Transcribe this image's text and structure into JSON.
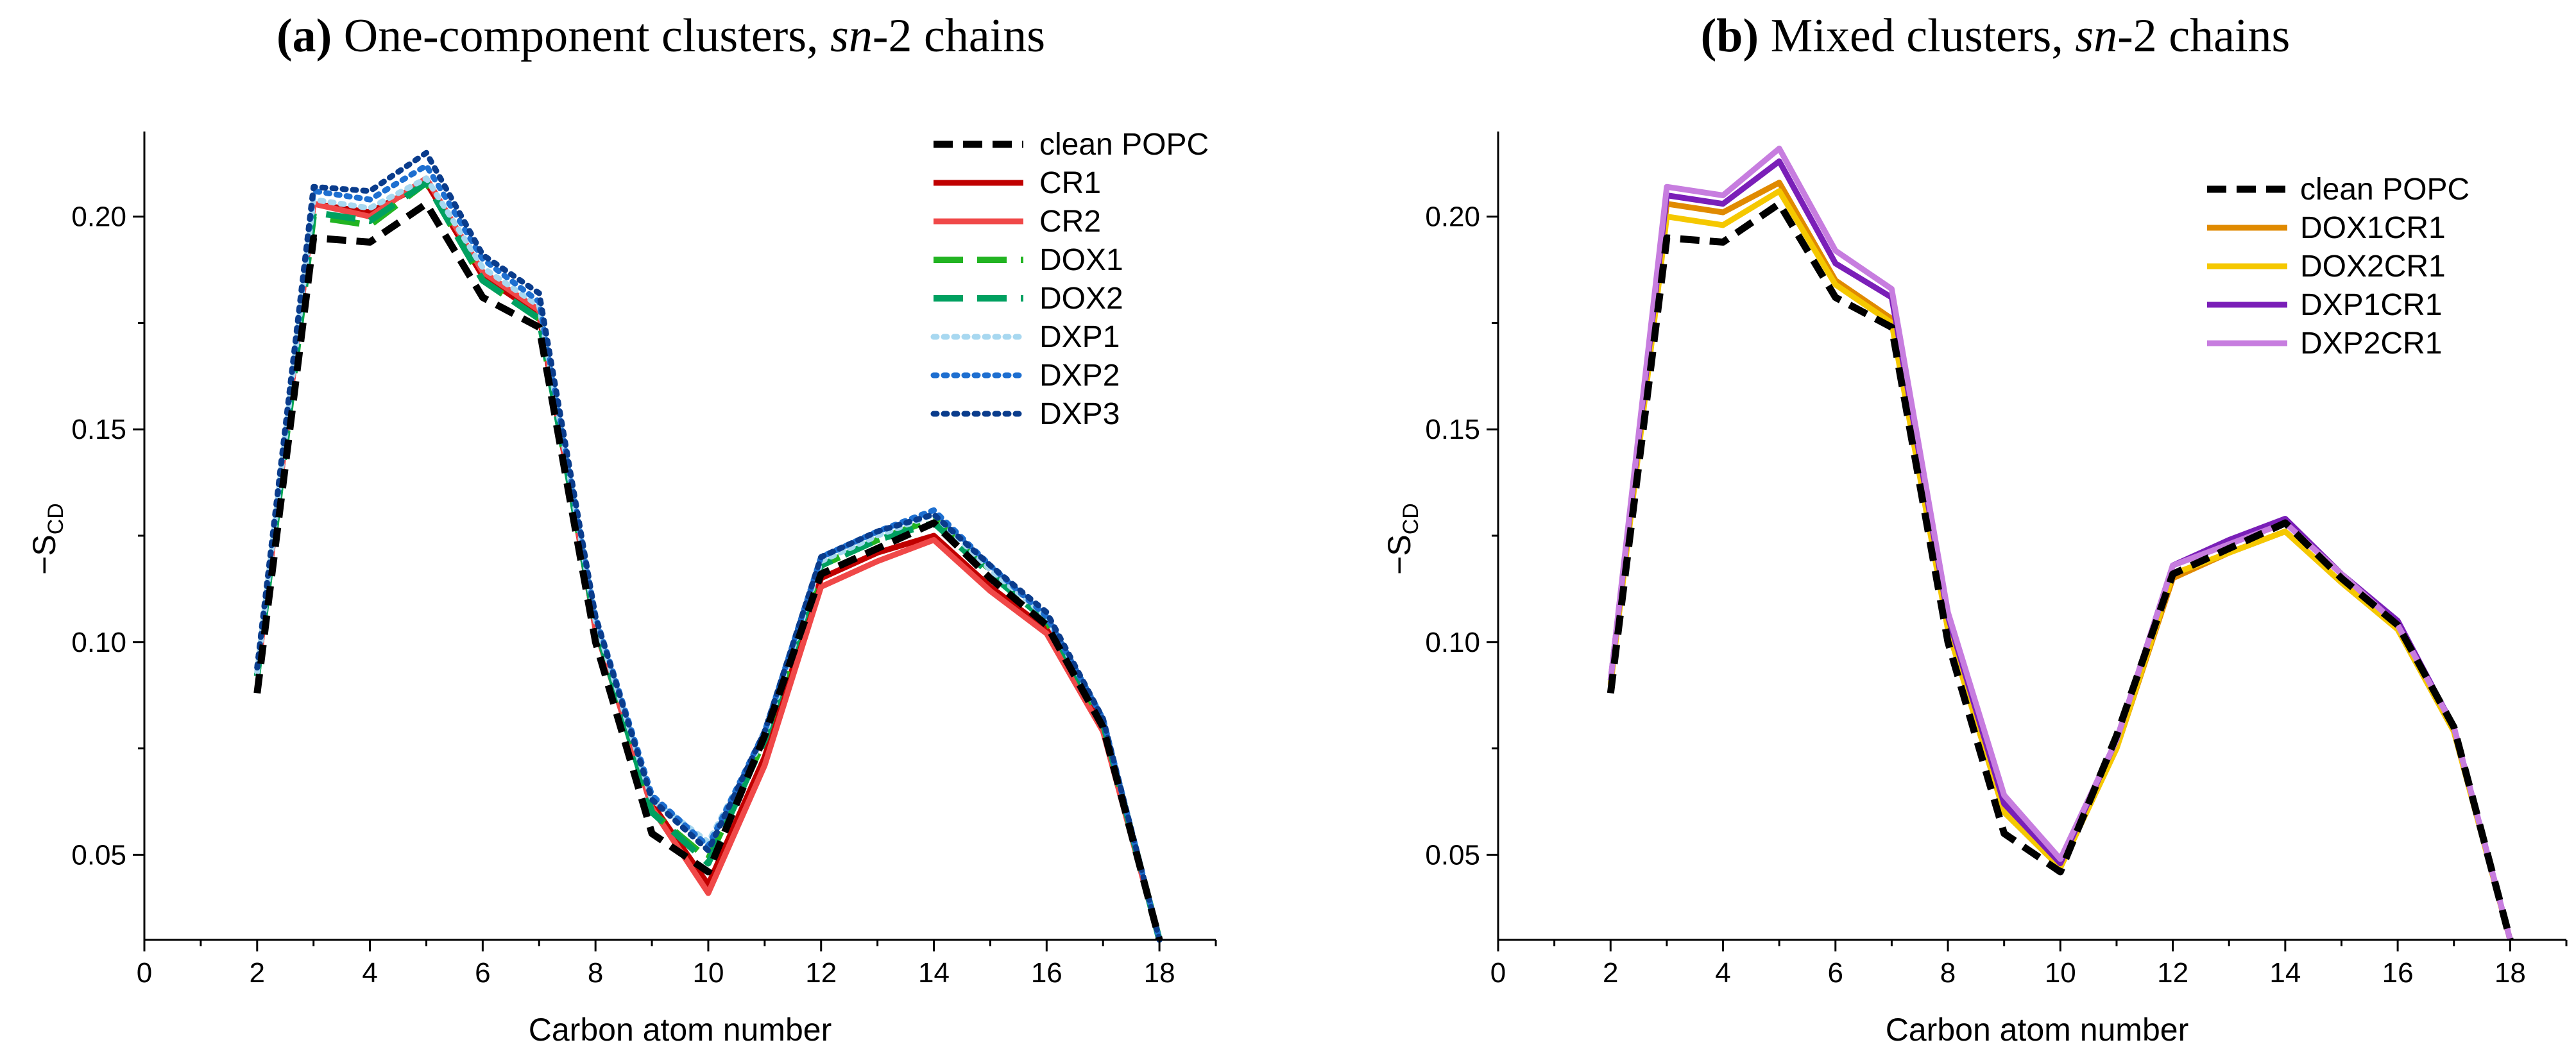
{
  "chart_data": [
    {
      "type": "line",
      "title_label": "(a)",
      "title_main": "One-component clusters, ",
      "title_italic": "sn",
      "title_tail": "-2 chains",
      "xlabel": "Carbon atom number",
      "ylabel_prefix": "−S",
      "ylabel_sub": "CD",
      "xlim": [
        0,
        19
      ],
      "ylim": [
        0.03,
        0.22
      ],
      "xticks": [
        "0",
        "2",
        "4",
        "6",
        "8",
        "10",
        "12",
        "14",
        "16",
        "18"
      ],
      "yticks": [
        "0.05",
        "0.10",
        "0.15",
        "0.20"
      ],
      "legend_position": "top-right",
      "x": [
        2,
        3,
        4,
        5,
        6,
        7,
        8,
        9,
        10,
        11,
        12,
        13,
        14,
        15,
        16,
        17,
        18
      ],
      "series": [
        {
          "name": "clean POPC",
          "color": "#000000",
          "style": "dashed",
          "values": [
            0.088,
            0.195,
            0.194,
            0.203,
            0.181,
            0.174,
            0.1,
            0.055,
            0.046,
            0.078,
            0.116,
            0.122,
            0.128,
            0.115,
            0.104,
            0.08,
            0.03
          ]
        },
        {
          "name": "CR1",
          "color": "#c00000",
          "style": "solid",
          "values": [
            0.092,
            0.203,
            0.201,
            0.208,
            0.186,
            0.177,
            0.103,
            0.062,
            0.043,
            0.073,
            0.115,
            0.121,
            0.125,
            0.113,
            0.103,
            0.08,
            0.03
          ]
        },
        {
          "name": "CR2",
          "color": "#f04848",
          "style": "solid",
          "values": [
            0.092,
            0.203,
            0.2,
            0.209,
            0.187,
            0.178,
            0.103,
            0.061,
            0.041,
            0.071,
            0.113,
            0.119,
            0.124,
            0.112,
            0.102,
            0.079,
            0.03
          ]
        },
        {
          "name": "DOX1",
          "color": "#22b422",
          "style": "longdash",
          "values": [
            0.092,
            0.2,
            0.198,
            0.208,
            0.185,
            0.176,
            0.104,
            0.06,
            0.049,
            0.077,
            0.118,
            0.124,
            0.129,
            0.117,
            0.105,
            0.081,
            0.03
          ]
        },
        {
          "name": "DOX2",
          "color": "#00a060",
          "style": "longdash",
          "values": [
            0.092,
            0.201,
            0.199,
            0.208,
            0.185,
            0.176,
            0.104,
            0.06,
            0.048,
            0.077,
            0.118,
            0.124,
            0.128,
            0.116,
            0.105,
            0.081,
            0.03
          ]
        },
        {
          "name": "DXP1",
          "color": "#a8d8f0",
          "style": "dotted",
          "values": [
            0.093,
            0.204,
            0.202,
            0.209,
            0.188,
            0.179,
            0.105,
            0.063,
            0.053,
            0.078,
            0.119,
            0.125,
            0.13,
            0.117,
            0.106,
            0.082,
            0.03
          ]
        },
        {
          "name": "DXP2",
          "color": "#1e6fd0",
          "style": "dotted",
          "values": [
            0.094,
            0.206,
            0.204,
            0.212,
            0.19,
            0.18,
            0.106,
            0.064,
            0.052,
            0.079,
            0.12,
            0.126,
            0.131,
            0.118,
            0.106,
            0.082,
            0.03
          ]
        },
        {
          "name": "DXP3",
          "color": "#0a3c8c",
          "style": "dotted",
          "values": [
            0.094,
            0.207,
            0.206,
            0.215,
            0.191,
            0.182,
            0.106,
            0.063,
            0.051,
            0.079,
            0.12,
            0.126,
            0.13,
            0.118,
            0.107,
            0.082,
            0.03
          ]
        }
      ]
    },
    {
      "type": "line",
      "title_label": "(b)",
      "title_main": "Mixed clusters, ",
      "title_italic": "sn",
      "title_tail": "-2 chains",
      "xlabel": "Carbon atom number",
      "ylabel_prefix": "−S",
      "ylabel_sub": "CD",
      "xlim": [
        0,
        19
      ],
      "ylim": [
        0.03,
        0.22
      ],
      "xticks": [
        "0",
        "2",
        "4",
        "6",
        "8",
        "10",
        "12",
        "14",
        "16",
        "18"
      ],
      "yticks": [
        "0.05",
        "0.10",
        "0.15",
        "0.20"
      ],
      "legend_position": "top-right",
      "x": [
        2,
        3,
        4,
        5,
        6,
        7,
        8,
        9,
        10,
        11,
        12,
        13,
        14,
        15,
        16,
        17,
        18
      ],
      "series": [
        {
          "name": "clean POPC",
          "color": "#000000",
          "style": "dashed",
          "values": [
            0.088,
            0.195,
            0.194,
            0.203,
            0.181,
            0.174,
            0.1,
            0.055,
            0.046,
            0.078,
            0.116,
            0.122,
            0.128,
            0.115,
            0.104,
            0.08,
            0.03
          ]
        },
        {
          "name": "DOX1CR1",
          "color": "#e08a00",
          "style": "solid",
          "values": [
            0.09,
            0.203,
            0.201,
            0.208,
            0.185,
            0.176,
            0.103,
            0.06,
            0.047,
            0.075,
            0.115,
            0.121,
            0.126,
            0.114,
            0.103,
            0.079,
            0.03
          ]
        },
        {
          "name": "DOX2CR1",
          "color": "#f5c800",
          "style": "solid",
          "values": [
            0.09,
            0.2,
            0.198,
            0.206,
            0.184,
            0.175,
            0.103,
            0.06,
            0.047,
            0.075,
            0.116,
            0.121,
            0.126,
            0.114,
            0.103,
            0.079,
            0.03
          ]
        },
        {
          "name": "DXP1CR1",
          "color": "#7a1fb8",
          "style": "solid",
          "values": [
            0.091,
            0.205,
            0.203,
            0.213,
            0.189,
            0.181,
            0.106,
            0.062,
            0.048,
            0.077,
            0.118,
            0.124,
            0.129,
            0.116,
            0.105,
            0.08,
            0.03
          ]
        },
        {
          "name": "DXP2CR1",
          "color": "#c77ddf",
          "style": "solid",
          "values": [
            0.091,
            0.207,
            0.205,
            0.216,
            0.192,
            0.183,
            0.107,
            0.064,
            0.049,
            0.077,
            0.118,
            0.123,
            0.128,
            0.116,
            0.104,
            0.08,
            0.03
          ]
        }
      ]
    }
  ]
}
